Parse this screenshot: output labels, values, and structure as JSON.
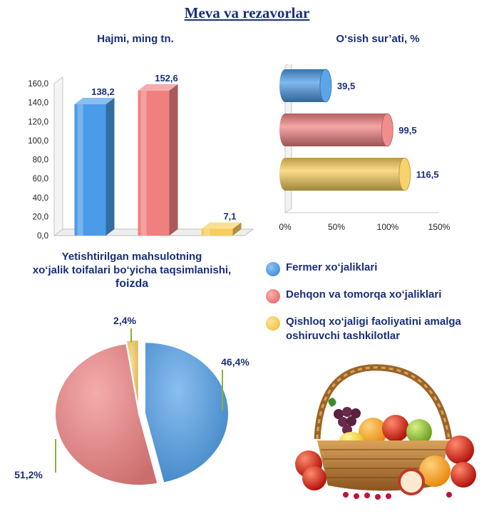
{
  "page_title": "Meva va rezavorlar",
  "colors": {
    "blue": "#4a9be8",
    "red": "#f08080",
    "yellow": "#f8cd5a",
    "text": "#1a2f7a"
  },
  "chart_data": [
    {
      "type": "bar",
      "title": "Hajmi, ming tn.",
      "categories": [
        "Fermer xo‘jaliklari",
        "Dehqon va tomorqa xo‘jaliklari",
        "Qishloq xo‘jaligi faoliyatini amalga oshiruvchi tashkilotlar"
      ],
      "values": [
        138.2,
        152.6,
        7.1
      ],
      "value_labels": [
        "138,2",
        "152,6",
        "7,1"
      ],
      "colors": [
        "#4a9be8",
        "#f08080",
        "#f8cd5a"
      ],
      "ylim": [
        0,
        160
      ],
      "yticks": [
        "0,0",
        "20,0",
        "40,0",
        "60,0",
        "80,0",
        "100,0",
        "120,0",
        "140,0",
        "160,0"
      ],
      "grid": false
    },
    {
      "type": "bar",
      "orientation": "horizontal",
      "title": "O‘sish sur’ati, %",
      "categories": [
        "Fermer xo‘jaliklari",
        "Dehqon va tomorqa xo‘jaliklari",
        "Qishloq xo‘jaligi faoliyatini amalga oshiruvchi tashkilotlar"
      ],
      "values": [
        39.5,
        99.5,
        116.5
      ],
      "value_labels": [
        "39,5",
        "99,5",
        "116,5"
      ],
      "colors": [
        "#4a9be8",
        "#f08080",
        "#f8cd5a"
      ],
      "xlim": [
        0,
        150
      ],
      "xticks": [
        "0%",
        "50%",
        "100%",
        "150%"
      ],
      "grid": false
    },
    {
      "type": "pie",
      "title_lines": [
        "Yetishtirilgan mahsulotning",
        "xo‘jalik toifalari bo‘yicha taqsimlanishi,",
        "foizda"
      ],
      "categories": [
        "Fermer xo‘jaliklari",
        "Dehqon va tomorqa xo‘jaliklari",
        "Qishloq xo‘jaligi faoliyatini amalga oshiruvchi tashkilotlar"
      ],
      "values": [
        46.4,
        51.2,
        2.4
      ],
      "value_labels": [
        "46,4%",
        "51,2%",
        "2,4%"
      ],
      "colors": [
        "#4a9be8",
        "#f08080",
        "#f8cd5a"
      ]
    }
  ],
  "legend": [
    {
      "label": "Fermer xo‘jaliklari",
      "color": "#4a9be8"
    },
    {
      "label": "Dehqon va tomorqa xo‘jaliklari",
      "color": "#f08080"
    },
    {
      "label": "Qishloq xo‘jaligi faoliyatini amalga oshiruvchi tashkilotlar",
      "color": "#f8cd5a"
    }
  ],
  "illustration": "fruit-basket"
}
